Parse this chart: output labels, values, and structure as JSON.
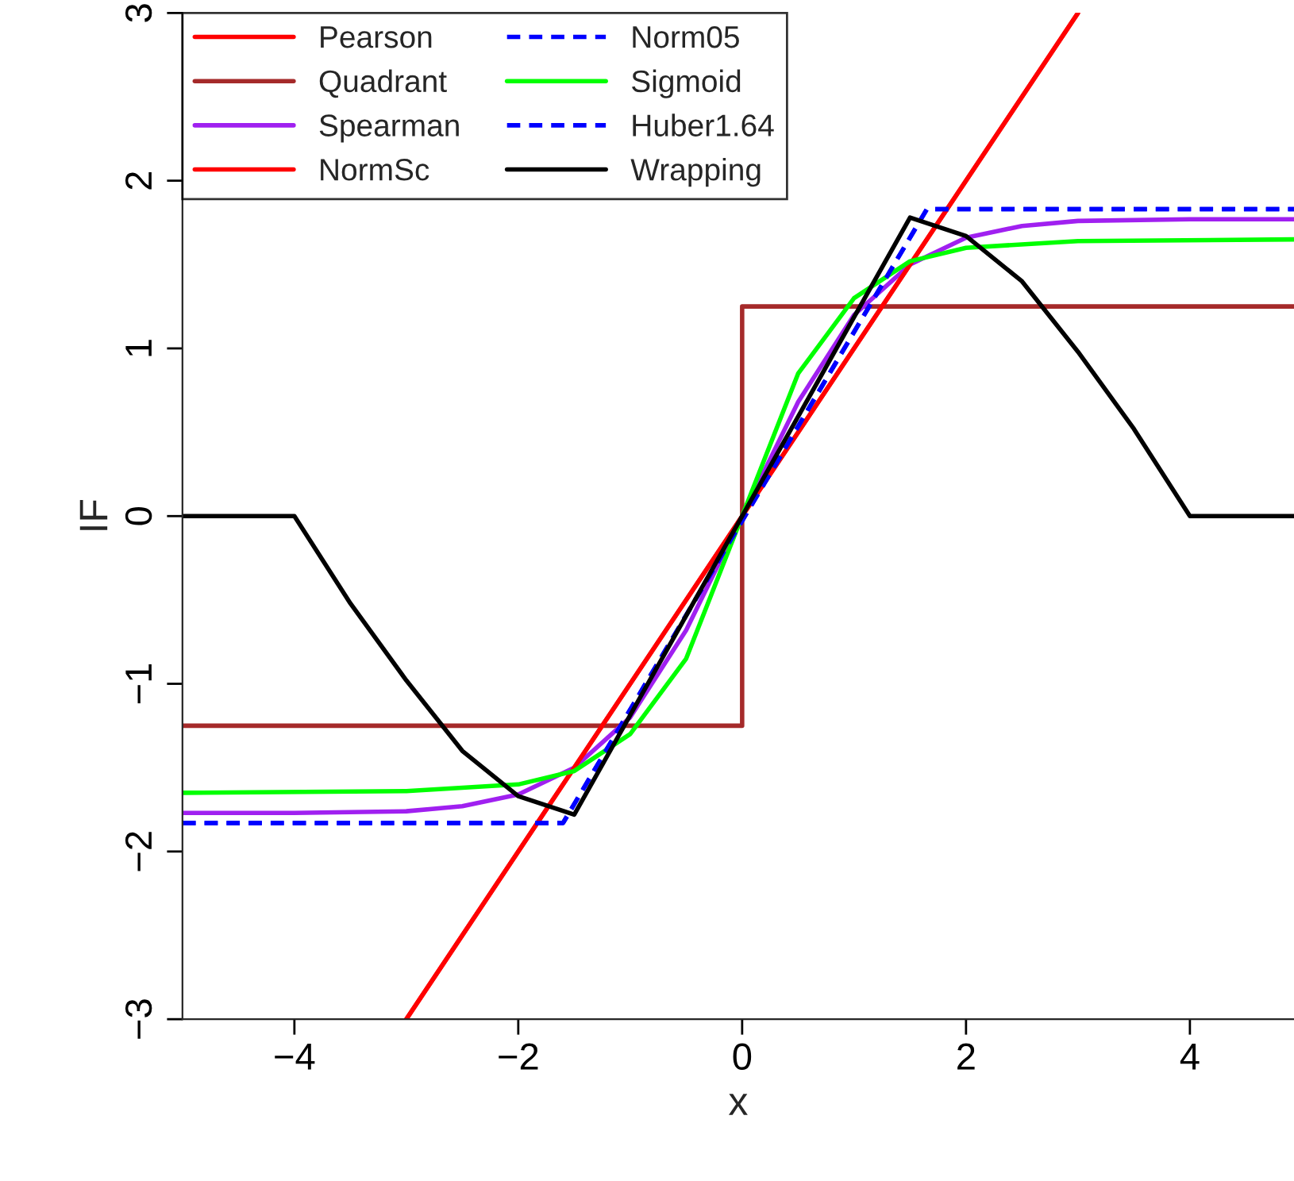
{
  "chart_data": {
    "type": "line",
    "xlabel": "x",
    "ylabel": "IF",
    "xlim": [
      -5,
      4.93
    ],
    "ylim": [
      -3,
      3
    ],
    "xticks": [
      -4,
      -2,
      0,
      2,
      4
    ],
    "yticks": [
      -3,
      -2,
      -1,
      0,
      1,
      2,
      3
    ],
    "grid": false,
    "legend": "top left",
    "line_style": "solid",
    "marker": "none",
    "series": [
      {
        "name": "Pearson",
        "color": "#ff0000",
        "x": [
          -3,
          3
        ],
        "values": [
          -3,
          3
        ]
      },
      {
        "name": "Quadrant",
        "color": "#a52a2a",
        "x": [
          -5,
          0,
          0,
          4.93
        ],
        "values": [
          -1.25,
          -1.25,
          1.25,
          1.25
        ]
      },
      {
        "name": "Spearman",
        "color": "#a020f0",
        "x": [
          -5,
          -4,
          -3,
          -2.5,
          -2,
          -1.5,
          -1,
          -0.5,
          0,
          0.5,
          1,
          1.5,
          2,
          2.5,
          3,
          4,
          4.93
        ],
        "values": [
          -1.77,
          -1.77,
          -1.76,
          -1.73,
          -1.66,
          -1.5,
          -1.2,
          -0.68,
          0,
          0.68,
          1.2,
          1.5,
          1.66,
          1.73,
          1.76,
          1.77,
          1.77
        ]
      },
      {
        "name": "NormSc",
        "color": "#ff0000",
        "x": [
          -3,
          3
        ],
        "values": [
          -3,
          3
        ]
      },
      {
        "name": "Norm05",
        "color": "#0000ff",
        "line_style": "dashed",
        "x": [
          -5,
          -1.6,
          1.65,
          4.93
        ],
        "values": [
          -1.83,
          -1.83,
          1.83,
          1.83
        ]
      },
      {
        "name": "Sigmoid",
        "color": "#00ff00",
        "x": [
          -5,
          -3,
          -2,
          -1.5,
          -1,
          -0.5,
          0,
          0.5,
          1,
          1.5,
          2,
          3,
          4.93
        ],
        "values": [
          -1.65,
          -1.64,
          -1.6,
          -1.52,
          -1.3,
          -0.85,
          0,
          0.85,
          1.3,
          1.52,
          1.6,
          1.64,
          1.65
        ]
      },
      {
        "name": "Huber1.64",
        "color": "#0000ff",
        "line_style": "dashed",
        "x": [
          -5,
          -1.6,
          1.65,
          4.93
        ],
        "values": [
          -1.83,
          -1.83,
          1.83,
          1.83
        ]
      },
      {
        "name": "Wrapping",
        "color": "#000000",
        "x": [
          -5,
          -4,
          -3.5,
          -3,
          -2.5,
          -2,
          -1.5,
          1.5,
          2,
          2.5,
          3,
          3.5,
          4,
          4.93
        ],
        "values": [
          0,
          0,
          -0.52,
          -0.98,
          -1.4,
          -1.67,
          -1.78,
          1.78,
          1.67,
          1.4,
          0.98,
          0.52,
          0,
          0
        ]
      }
    ]
  }
}
